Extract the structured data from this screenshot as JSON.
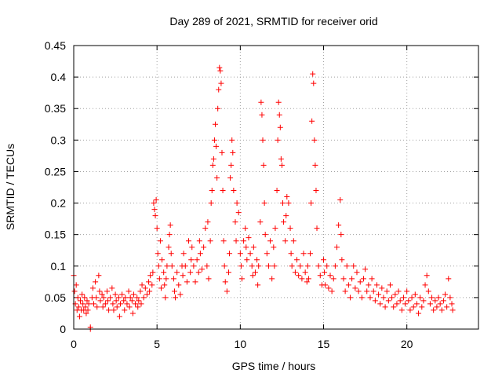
{
  "chart_data": {
    "type": "scatter",
    "title": "Day 289 of 2021, SRMTID for receiver orid",
    "xlabel": "GPS time / hours",
    "ylabel": "SRMTID / TECUs",
    "xlim": [
      0,
      24.3
    ],
    "ylim": [
      0,
      0.45
    ],
    "xticks": [
      0,
      5,
      10,
      15,
      20
    ],
    "yticks": [
      0,
      0.05,
      0.1,
      0.15,
      0.2,
      0.25,
      0.3,
      0.35,
      0.4,
      0.45
    ],
    "xtick_labels": [
      "0",
      "5",
      "10",
      "15",
      "20"
    ],
    "ytick_labels": [
      "0",
      "0.05",
      "0.1",
      "0.15",
      "0.2",
      "0.25",
      "0.3",
      "0.35",
      "0.4",
      "0.45"
    ],
    "grid": true,
    "marker": "plus",
    "series": [
      {
        "name": "SRMTID",
        "color": "#ff0000",
        "points": [
          [
            0.0,
            0.085
          ],
          [
            0.05,
            0.06
          ],
          [
            0.1,
            0.04
          ],
          [
            0.15,
            0.07
          ],
          [
            0.2,
            0.03
          ],
          [
            0.25,
            0.05
          ],
          [
            0.3,
            0.035
          ],
          [
            0.35,
            0.02
          ],
          [
            0.4,
            0.045
          ],
          [
            0.45,
            0.03
          ],
          [
            0.5,
            0.055
          ],
          [
            0.55,
            0.04
          ],
          [
            0.6,
            0.03
          ],
          [
            0.65,
            0.05
          ],
          [
            0.7,
            0.035
          ],
          [
            0.75,
            0.025
          ],
          [
            0.8,
            0.045
          ],
          [
            0.85,
            0.03
          ],
          [
            0.9,
            0.04
          ],
          [
            1.0,
            0.0
          ],
          [
            1.0,
            0.003
          ],
          [
            1.1,
            0.05
          ],
          [
            1.15,
            0.065
          ],
          [
            1.2,
            0.04
          ],
          [
            1.3,
            0.075
          ],
          [
            1.35,
            0.05
          ],
          [
            1.4,
            0.035
          ],
          [
            1.5,
            0.085
          ],
          [
            1.55,
            0.06
          ],
          [
            1.6,
            0.045
          ],
          [
            1.7,
            0.055
          ],
          [
            1.75,
            0.035
          ],
          [
            1.8,
            0.05
          ],
          [
            1.9,
            0.04
          ],
          [
            2.0,
            0.06
          ],
          [
            2.05,
            0.045
          ],
          [
            2.1,
            0.03
          ],
          [
            2.2,
            0.05
          ],
          [
            2.3,
            0.065
          ],
          [
            2.35,
            0.04
          ],
          [
            2.4,
            0.03
          ],
          [
            2.5,
            0.055
          ],
          [
            2.55,
            0.045
          ],
          [
            2.6,
            0.035
          ],
          [
            2.7,
            0.05
          ],
          [
            2.75,
            0.02
          ],
          [
            2.8,
            0.04
          ],
          [
            2.9,
            0.055
          ],
          [
            3.0,
            0.045
          ],
          [
            3.05,
            0.03
          ],
          [
            3.1,
            0.05
          ],
          [
            3.2,
            0.04
          ],
          [
            3.3,
            0.06
          ],
          [
            3.35,
            0.035
          ],
          [
            3.4,
            0.05
          ],
          [
            3.5,
            0.045
          ],
          [
            3.55,
            0.025
          ],
          [
            3.6,
            0.055
          ],
          [
            3.7,
            0.04
          ],
          [
            3.8,
            0.05
          ],
          [
            3.85,
            0.035
          ],
          [
            3.9,
            0.045
          ],
          [
            4.0,
            0.06
          ],
          [
            4.05,
            0.04
          ],
          [
            4.1,
            0.07
          ],
          [
            4.2,
            0.05
          ],
          [
            4.3,
            0.065
          ],
          [
            4.4,
            0.055
          ],
          [
            4.5,
            0.075
          ],
          [
            4.55,
            0.06
          ],
          [
            4.6,
            0.085
          ],
          [
            4.7,
            0.07
          ],
          [
            4.75,
            0.09
          ],
          [
            4.8,
            0.2
          ],
          [
            4.85,
            0.19
          ],
          [
            4.9,
            0.18
          ],
          [
            4.95,
            0.205
          ],
          [
            5.0,
            0.16
          ],
          [
            5.05,
            0.12
          ],
          [
            5.1,
            0.1
          ],
          [
            5.15,
            0.08
          ],
          [
            5.2,
            0.14
          ],
          [
            5.25,
            0.065
          ],
          [
            5.3,
            0.11
          ],
          [
            5.4,
            0.09
          ],
          [
            5.45,
            0.07
          ],
          [
            5.5,
            0.05
          ],
          [
            5.55,
            0.08
          ],
          [
            5.6,
            0.1
          ],
          [
            5.7,
            0.13
          ],
          [
            5.75,
            0.15
          ],
          [
            5.8,
            0.165
          ],
          [
            5.85,
            0.12
          ],
          [
            5.9,
            0.1
          ],
          [
            6.0,
            0.08
          ],
          [
            6.05,
            0.06
          ],
          [
            6.1,
            0.05
          ],
          [
            6.2,
            0.09
          ],
          [
            6.3,
            0.07
          ],
          [
            6.4,
            0.055
          ],
          [
            6.5,
            0.1
          ],
          [
            6.55,
            0.085
          ],
          [
            6.6,
            0.12
          ],
          [
            6.7,
            0.1
          ],
          [
            6.8,
            0.075
          ],
          [
            6.9,
            0.14
          ],
          [
            7.0,
            0.09
          ],
          [
            7.05,
            0.11
          ],
          [
            7.1,
            0.13
          ],
          [
            7.2,
            0.1
          ],
          [
            7.3,
            0.075
          ],
          [
            7.4,
            0.11
          ],
          [
            7.5,
            0.09
          ],
          [
            7.55,
            0.14
          ],
          [
            7.6,
            0.12
          ],
          [
            7.7,
            0.095
          ],
          [
            7.8,
            0.13
          ],
          [
            7.9,
            0.16
          ],
          [
            8.0,
            0.1
          ],
          [
            8.05,
            0.17
          ],
          [
            8.1,
            0.08
          ],
          [
            8.2,
            0.14
          ],
          [
            8.25,
            0.2
          ],
          [
            8.3,
            0.22
          ],
          [
            8.35,
            0.26
          ],
          [
            8.4,
            0.27
          ],
          [
            8.45,
            0.3
          ],
          [
            8.5,
            0.325
          ],
          [
            8.55,
            0.29
          ],
          [
            8.6,
            0.24
          ],
          [
            8.65,
            0.35
          ],
          [
            8.7,
            0.38
          ],
          [
            8.75,
            0.415
          ],
          [
            8.8,
            0.41
          ],
          [
            8.85,
            0.39
          ],
          [
            8.9,
            0.28
          ],
          [
            8.95,
            0.22
          ],
          [
            9.0,
            0.14
          ],
          [
            9.05,
            0.1
          ],
          [
            9.1,
            0.075
          ],
          [
            9.2,
            0.06
          ],
          [
            9.3,
            0.09
          ],
          [
            9.35,
            0.12
          ],
          [
            9.4,
            0.24
          ],
          [
            9.45,
            0.26
          ],
          [
            9.5,
            0.3
          ],
          [
            9.55,
            0.28
          ],
          [
            9.6,
            0.22
          ],
          [
            9.7,
            0.17
          ],
          [
            9.75,
            0.14
          ],
          [
            9.8,
            0.2
          ],
          [
            9.9,
            0.185
          ],
          [
            10.0,
            0.12
          ],
          [
            10.05,
            0.1
          ],
          [
            10.1,
            0.08
          ],
          [
            10.2,
            0.14
          ],
          [
            10.3,
            0.16
          ],
          [
            10.35,
            0.13
          ],
          [
            10.4,
            0.11
          ],
          [
            10.5,
            0.145
          ],
          [
            10.6,
            0.12
          ],
          [
            10.7,
            0.1
          ],
          [
            10.75,
            0.085
          ],
          [
            10.8,
            0.13
          ],
          [
            10.9,
            0.09
          ],
          [
            11.0,
            0.11
          ],
          [
            11.05,
            0.07
          ],
          [
            11.1,
            0.1
          ],
          [
            11.2,
            0.17
          ],
          [
            11.25,
            0.36
          ],
          [
            11.3,
            0.34
          ],
          [
            11.35,
            0.3
          ],
          [
            11.4,
            0.26
          ],
          [
            11.45,
            0.2
          ],
          [
            11.5,
            0.15
          ],
          [
            11.6,
            0.12
          ],
          [
            11.7,
            0.1
          ],
          [
            11.8,
            0.14
          ],
          [
            11.9,
            0.08
          ],
          [
            12.0,
            0.13
          ],
          [
            12.05,
            0.1
          ],
          [
            12.1,
            0.16
          ],
          [
            12.2,
            0.22
          ],
          [
            12.25,
            0.3
          ],
          [
            12.3,
            0.36
          ],
          [
            12.35,
            0.34
          ],
          [
            12.4,
            0.32
          ],
          [
            12.45,
            0.27
          ],
          [
            12.5,
            0.26
          ],
          [
            12.55,
            0.2
          ],
          [
            12.6,
            0.17
          ],
          [
            12.7,
            0.14
          ],
          [
            12.75,
            0.18
          ],
          [
            12.8,
            0.21
          ],
          [
            12.9,
            0.2
          ],
          [
            13.0,
            0.16
          ],
          [
            13.05,
            0.12
          ],
          [
            13.1,
            0.1
          ],
          [
            13.2,
            0.14
          ],
          [
            13.3,
            0.09
          ],
          [
            13.4,
            0.11
          ],
          [
            13.5,
            0.085
          ],
          [
            13.6,
            0.1
          ],
          [
            13.7,
            0.08
          ],
          [
            13.8,
            0.12
          ],
          [
            13.9,
            0.09
          ],
          [
            14.0,
            0.075
          ],
          [
            14.05,
            0.1
          ],
          [
            14.1,
            0.08
          ],
          [
            14.2,
            0.12
          ],
          [
            14.25,
            0.2
          ],
          [
            14.3,
            0.33
          ],
          [
            14.35,
            0.405
          ],
          [
            14.4,
            0.39
          ],
          [
            14.45,
            0.3
          ],
          [
            14.5,
            0.26
          ],
          [
            14.55,
            0.22
          ],
          [
            14.6,
            0.16
          ],
          [
            14.7,
            0.1
          ],
          [
            14.8,
            0.085
          ],
          [
            14.9,
            0.07
          ],
          [
            15.0,
            0.11
          ],
          [
            15.05,
            0.09
          ],
          [
            15.1,
            0.07
          ],
          [
            15.2,
            0.1
          ],
          [
            15.3,
            0.065
          ],
          [
            15.4,
            0.085
          ],
          [
            15.5,
            0.06
          ],
          [
            15.6,
            0.08
          ],
          [
            15.7,
            0.1
          ],
          [
            15.8,
            0.13
          ],
          [
            15.9,
            0.165
          ],
          [
            16.0,
            0.205
          ],
          [
            16.05,
            0.15
          ],
          [
            16.1,
            0.11
          ],
          [
            16.2,
            0.08
          ],
          [
            16.3,
            0.06
          ],
          [
            16.4,
            0.1
          ],
          [
            16.5,
            0.07
          ],
          [
            16.6,
            0.05
          ],
          [
            16.7,
            0.08
          ],
          [
            16.8,
            0.1
          ],
          [
            16.9,
            0.065
          ],
          [
            17.0,
            0.09
          ],
          [
            17.1,
            0.06
          ],
          [
            17.2,
            0.075
          ],
          [
            17.3,
            0.05
          ],
          [
            17.4,
            0.08
          ],
          [
            17.5,
            0.095
          ],
          [
            17.6,
            0.06
          ],
          [
            17.7,
            0.07
          ],
          [
            17.8,
            0.05
          ],
          [
            17.9,
            0.08
          ],
          [
            18.0,
            0.06
          ],
          [
            18.1,
            0.045
          ],
          [
            18.2,
            0.07
          ],
          [
            18.3,
            0.055
          ],
          [
            18.4,
            0.04
          ],
          [
            18.5,
            0.065
          ],
          [
            18.6,
            0.05
          ],
          [
            18.7,
            0.035
          ],
          [
            18.8,
            0.06
          ],
          [
            18.9,
            0.045
          ],
          [
            19.0,
            0.07
          ],
          [
            19.1,
            0.05
          ],
          [
            19.2,
            0.035
          ],
          [
            19.3,
            0.055
          ],
          [
            19.4,
            0.04
          ],
          [
            19.5,
            0.06
          ],
          [
            19.6,
            0.045
          ],
          [
            19.7,
            0.03
          ],
          [
            19.8,
            0.05
          ],
          [
            19.9,
            0.04
          ],
          [
            20.0,
            0.06
          ],
          [
            20.1,
            0.045
          ],
          [
            20.2,
            0.03
          ],
          [
            20.3,
            0.05
          ],
          [
            20.4,
            0.035
          ],
          [
            20.5,
            0.055
          ],
          [
            20.6,
            0.04
          ],
          [
            20.7,
            0.025
          ],
          [
            20.8,
            0.05
          ],
          [
            20.9,
            0.035
          ],
          [
            21.0,
            0.045
          ],
          [
            21.1,
            0.07
          ],
          [
            21.2,
            0.085
          ],
          [
            21.3,
            0.06
          ],
          [
            21.4,
            0.04
          ],
          [
            21.5,
            0.05
          ],
          [
            21.6,
            0.03
          ],
          [
            21.7,
            0.045
          ],
          [
            21.8,
            0.035
          ],
          [
            21.9,
            0.05
          ],
          [
            22.0,
            0.04
          ],
          [
            22.1,
            0.03
          ],
          [
            22.2,
            0.045
          ],
          [
            22.3,
            0.055
          ],
          [
            22.4,
            0.035
          ],
          [
            22.5,
            0.08
          ],
          [
            22.6,
            0.05
          ],
          [
            22.7,
            0.04
          ],
          [
            22.75,
            0.03
          ]
        ]
      }
    ]
  }
}
